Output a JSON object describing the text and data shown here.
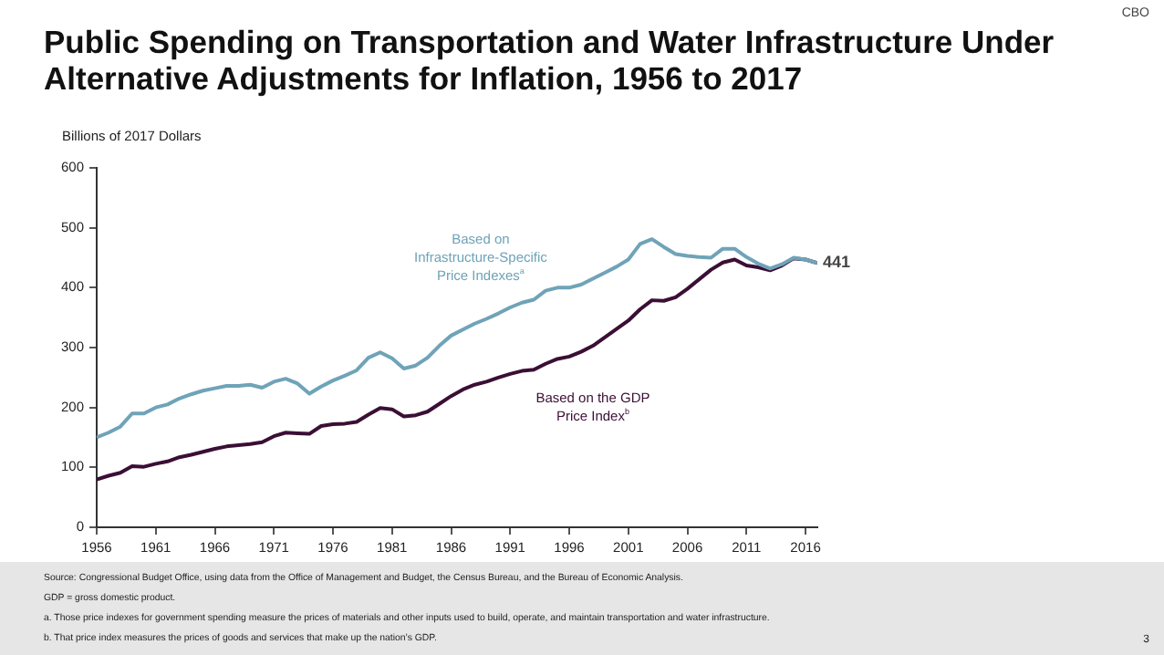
{
  "chart_data": {
    "type": "line",
    "title": "Public Spending on Transportation and Water Infrastructure Under Alternative Adjustments for Inflation, 1956 to 2017",
    "ylabel": "Billions of 2017 Dollars",
    "x": [
      1956,
      1957,
      1958,
      1959,
      1960,
      1961,
      1962,
      1963,
      1964,
      1965,
      1966,
      1967,
      1968,
      1969,
      1970,
      1971,
      1972,
      1973,
      1974,
      1975,
      1976,
      1977,
      1978,
      1979,
      1980,
      1981,
      1982,
      1983,
      1984,
      1985,
      1986,
      1987,
      1988,
      1989,
      1990,
      1991,
      1992,
      1993,
      1994,
      1995,
      1996,
      1997,
      1998,
      1999,
      2000,
      2001,
      2002,
      2003,
      2004,
      2005,
      2006,
      2007,
      2008,
      2009,
      2010,
      2011,
      2012,
      2013,
      2014,
      2015,
      2016,
      2017
    ],
    "series": [
      {
        "name": "Based on Infrastructure-Specific Price Indexes$^{a}$",
        "color": "#6fa3b8",
        "values": [
          150,
          158,
          168,
          190,
          190,
          200,
          205,
          215,
          222,
          228,
          232,
          236,
          236,
          238,
          233,
          243,
          248,
          240,
          223,
          235,
          245,
          253,
          262,
          283,
          292,
          282,
          265,
          270,
          283,
          303,
          320,
          330,
          340,
          348,
          357,
          367,
          375,
          380,
          395,
          400,
          400,
          405,
          415,
          425,
          435,
          447,
          473,
          481,
          468,
          456,
          453,
          451,
          450,
          465,
          465,
          451,
          440,
          432,
          439,
          450,
          447,
          441
        ]
      },
      {
        "name": "Based on the GDP Price Index$^{b}$",
        "color": "#3b0f35",
        "values": [
          80,
          86,
          91,
          102,
          101,
          106,
          110,
          117,
          121,
          126,
          131,
          135,
          137,
          139,
          142,
          152,
          158,
          157,
          156,
          169,
          172,
          173,
          176,
          188,
          199,
          197,
          185,
          187,
          193,
          206,
          219,
          230,
          238,
          243,
          250,
          256,
          261,
          263,
          273,
          281,
          285,
          293,
          303,
          317,
          331,
          345,
          364,
          379,
          378,
          384,
          398,
          414,
          430,
          442,
          447,
          437,
          434,
          429,
          437,
          449,
          447,
          441
        ]
      }
    ],
    "xlim": [
      1956,
      2017
    ],
    "xticks": [
      1956,
      1961,
      1966,
      1971,
      1976,
      1981,
      1986,
      1991,
      1996,
      2001,
      2006,
      2011,
      2016
    ],
    "ylim": [
      0,
      600
    ],
    "yticks": [
      0,
      100,
      200,
      300,
      400,
      500,
      600
    ],
    "grid": false,
    "legend": false,
    "marker": "none",
    "line_style": "solid",
    "annotations": [
      {
        "text": "441",
        "x": 2017,
        "y": 441
      },
      "Source: Congressional Budget Office, using data from the Office of Management and Budget, the Census Bureau, and the Bureau of Economic Analysis.",
      "GDP = gross domestic product.",
      "a. Those price indexes for government spending measure the prices of materials and other inputs used to build, operate, and maintain transportation and water infrastructure.",
      "b. That price index measures the prices of goods and services that make up the nation’s GDP.",
      "3",
      "CBO"
    ]
  }
}
